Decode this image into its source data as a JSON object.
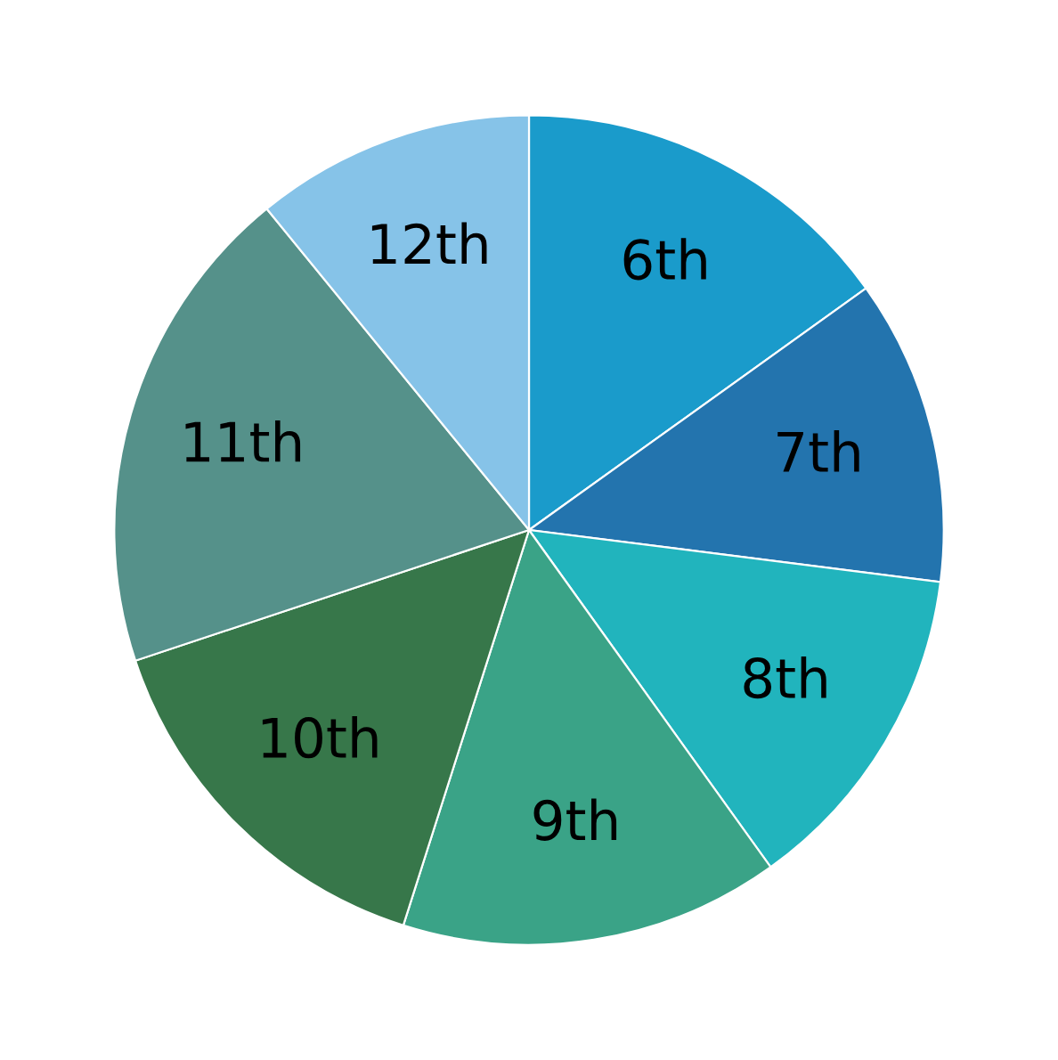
{
  "chart_data": {
    "type": "pie",
    "categories": [
      "6th",
      "7th",
      "8th",
      "9th",
      "10th",
      "11th",
      "12th"
    ],
    "values": [
      15.1,
      11.9,
      13.1,
      14.8,
      15.0,
      19.2,
      10.9
    ],
    "colors": [
      "#1a9bcb",
      "#2374ae",
      "#21b4bd",
      "#3aa387",
      "#37774a",
      "#55918a",
      "#86c3e8"
    ],
    "legend": false
  }
}
